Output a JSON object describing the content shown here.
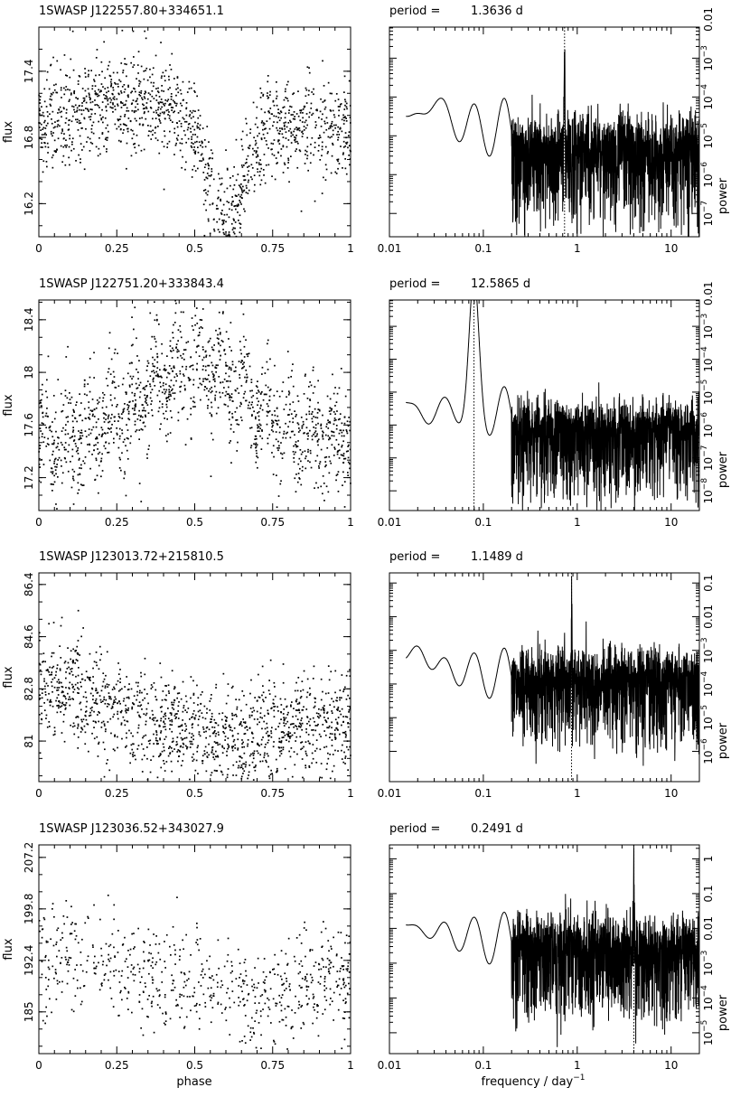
{
  "figure": {
    "x_label_left": "phase",
    "x_label_right": "frequency / day",
    "x_label_right_sup": "−1",
    "flux_label": "flux",
    "power_label": "power"
  },
  "chart_data": [
    {
      "name": "1SWASP J122557.80+334651.1",
      "period_prefix": "period =",
      "period_value": "1.3636 d",
      "period_days": 1.3636,
      "lightcurve": {
        "type": "scatter",
        "xlim": [
          0,
          1
        ],
        "ylim": [
          15.9,
          17.8
        ],
        "xticks": [
          0,
          0.25,
          0.5,
          0.75,
          1
        ],
        "xtick_labels": [
          "0",
          "0.25",
          "0.5",
          "0.75",
          "1"
        ],
        "yticks": [
          16.2,
          16.8,
          17.4
        ],
        "ytick_labels": [
          "16.2",
          "16.8",
          "17.4"
        ],
        "shape": {
          "base": 16.9,
          "bump": [
            0.28,
            0.22,
            0.25
          ],
          "dips": [
            [
              0.6,
              0.08,
              0.9
            ]
          ],
          "noise": 0.22
        }
      },
      "periodogram": {
        "type": "line",
        "xlim": [
          0.01,
          20
        ],
        "xscale": "log",
        "ylim_log10": [
          -7.6,
          -2.2
        ],
        "yscale": "log",
        "xticks": [
          0.01,
          0.1,
          1,
          10
        ],
        "xtick_labels": [
          "0.01",
          "0.1",
          "1",
          "10"
        ],
        "yticks_log10": [
          -7,
          -6,
          -5,
          -4,
          -3
        ],
        "ytick_labels": [
          "7",
          "6",
          "5",
          "4",
          "3"
        ],
        "ytick_extra_label": "0.01",
        "peak_frequency": 0.733,
        "shape": {
          "start": -4.5,
          "hump": [
            0.03,
            -4.0
          ],
          "noise_floor": -5.0,
          "noise_depth": 2.2
        }
      }
    },
    {
      "name": "1SWASP J122751.20+333843.4",
      "period_prefix": "period =",
      "period_value": "12.5865 d",
      "period_days": 12.5865,
      "lightcurve": {
        "type": "scatter",
        "xlim": [
          0,
          1
        ],
        "ylim": [
          16.95,
          18.55
        ],
        "xticks": [
          0,
          0.25,
          0.5,
          0.75,
          1
        ],
        "xtick_labels": [
          "0",
          "0.25",
          "0.5",
          "0.75",
          "1"
        ],
        "yticks": [
          17.2,
          17.6,
          18,
          18.4
        ],
        "ytick_labels": [
          "17.2",
          "17.6",
          "18",
          "18.4"
        ],
        "shape": {
          "base": 17.5,
          "bump": [
            0.5,
            0.55,
            0.22
          ],
          "dips": [],
          "noise": 0.22
        }
      },
      "periodogram": {
        "type": "line",
        "xlim": [
          0.01,
          20
        ],
        "xscale": "log",
        "ylim_log10": [
          -8.6,
          -2.2
        ],
        "yscale": "log",
        "xticks": [
          0.01,
          0.1,
          1,
          10
        ],
        "xtick_labels": [
          "0.01",
          "0.1",
          "1",
          "10"
        ],
        "yticks_log10": [
          -8,
          -7,
          -6,
          -5,
          -4,
          -3
        ],
        "ytick_labels": [
          "8",
          "7",
          "6",
          "5",
          "4",
          "3"
        ],
        "ytick_extra_label": "0.01",
        "peak_frequency": 0.0795,
        "shape": {
          "start": -5.3,
          "hump": [
            0.025,
            -5.7
          ],
          "noise_floor": -5.8,
          "noise_depth": 2.4
        }
      }
    },
    {
      "name": "1SWASP J123013.72+215810.5",
      "period_prefix": "period =",
      "period_value": "1.1489 d",
      "period_days": 1.1489,
      "lightcurve": {
        "type": "scatter",
        "xlim": [
          0,
          1
        ],
        "ylim": [
          79.6,
          86.8
        ],
        "xticks": [
          0,
          0.25,
          0.5,
          0.75,
          1
        ],
        "xtick_labels": [
          "0",
          "0.25",
          "0.5",
          "0.75",
          "1"
        ],
        "yticks": [
          81,
          82.8,
          84.6,
          86.4
        ],
        "ytick_labels": [
          "81",
          "82.8",
          "84.6",
          "86.4"
        ],
        "shape": {
          "base": 81.6,
          "bump": [
            0.05,
            1.4,
            0.2
          ],
          "dips": [
            [
              0.62,
              0.15,
              0.6
            ]
          ],
          "noise": 0.9
        }
      },
      "periodogram": {
        "type": "line",
        "xlim": [
          0.01,
          20
        ],
        "xscale": "log",
        "ylim_log10": [
          -6.9,
          -0.7
        ],
        "yscale": "log",
        "xticks": [
          0.01,
          0.1,
          1,
          10
        ],
        "xtick_labels": [
          "0.01",
          "0.1",
          "1",
          "10"
        ],
        "yticks_log10": [
          -6,
          -5,
          -4,
          -3
        ],
        "ytick_labels": [
          "6",
          "5",
          "4",
          "3"
        ],
        "ytick_plain_log10": [
          -2,
          -1
        ],
        "ytick_plain_labels": [
          "0.01",
          "0.1"
        ],
        "peak_frequency": 0.87,
        "shape": {
          "start": -3.4,
          "hump": [
            0.02,
            -2.9
          ],
          "noise_floor": -3.5,
          "noise_depth": 2.4
        }
      }
    },
    {
      "name": "1SWASP J123036.52+343027.9",
      "period_prefix": "period =",
      "period_value": "0.2491 d",
      "period_days": 0.2491,
      "lightcurve": {
        "type": "scatter",
        "xlim": [
          0,
          1
        ],
        "ylim": [
          179,
          209
        ],
        "xticks": [
          0,
          0.25,
          0.5,
          0.75,
          1
        ],
        "xtick_labels": [
          "0",
          "0.25",
          "0.5",
          "0.75",
          "1"
        ],
        "yticks": [
          185,
          192.4,
          199.8,
          207.2
        ],
        "ytick_labels": [
          "185",
          "192.4",
          "199.8",
          "207.2"
        ],
        "shape": {
          "base": 189.5,
          "bump": [
            0.12,
            3.5,
            0.2
          ],
          "dips": [
            [
              0.68,
              0.12,
              3.0
            ]
          ],
          "noise": 3.6
        }
      },
      "periodogram": {
        "type": "line",
        "xlim": [
          0.01,
          20
        ],
        "xscale": "log",
        "ylim_log10": [
          -5.6,
          0.4
        ],
        "yscale": "log",
        "xticks": [
          0.01,
          0.1,
          1,
          10
        ],
        "xtick_labels": [
          "0.01",
          "0.1",
          "1",
          "10"
        ],
        "yticks_log10": [
          -5,
          -4,
          -3
        ],
        "ytick_labels": [
          "5",
          "4",
          "3"
        ],
        "ytick_plain_log10": [
          -2,
          -1,
          0
        ],
        "ytick_plain_labels": [
          "0.01",
          "0.1",
          "1"
        ],
        "peak_frequency": 4.014,
        "shape": {
          "start": -2.0,
          "hump": [
            0.015,
            -1.9
          ],
          "noise_floor": -2.2,
          "noise_depth": 2.4
        }
      }
    }
  ]
}
